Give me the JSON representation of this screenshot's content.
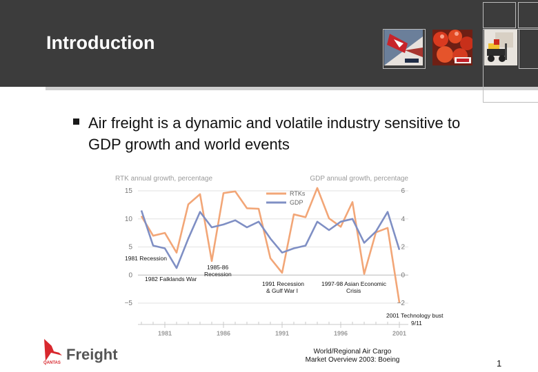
{
  "slide": {
    "title": "Introduction",
    "bullet": "Air freight is a dynamic and volatile industry sensitive to GDP growth and world events",
    "source_line1": "World/Regional Air Cargo",
    "source_line2": "Market Overview 2003: Boeing",
    "page_number": "1",
    "logo_text": "Freight",
    "logo_subtext": "QANTAS"
  },
  "colors": {
    "header_bg": "#3c3c3c",
    "rtk_line": "#f2a677",
    "gdp_line": "#7f8fc4",
    "logo_red": "#d8282e"
  },
  "chart_data": {
    "type": "line",
    "left_axis_title": "RTK annual growth, percentage",
    "right_axis_title": "GDP annual growth, percentage",
    "left_ticks": [
      "15",
      "10",
      "5",
      "0",
      "−5"
    ],
    "right_ticks": [
      "6",
      "4",
      "2",
      "0",
      "−2"
    ],
    "left_ylim": [
      -5,
      15
    ],
    "right_ylim": [
      -2,
      6
    ],
    "x_ticks": [
      "1981",
      "1986",
      "1991",
      "1996",
      "2001"
    ],
    "legend": [
      "RTKs",
      "GDP"
    ],
    "legend_position": "top-right",
    "series": [
      {
        "name": "RTKs",
        "x": [
          1979,
          1980,
          1981,
          1982,
          1983,
          1984,
          1985,
          1986,
          1987,
          1988,
          1989,
          1990,
          1991,
          1992,
          1993,
          1994,
          1995,
          1996,
          1997,
          1998,
          1999,
          2000,
          2001
        ],
        "values": [
          10.5,
          7.0,
          7.5,
          4.0,
          12.6,
          14.4,
          2.5,
          14.6,
          14.9,
          11.9,
          11.8,
          3.0,
          0.4,
          10.8,
          10.3,
          15.5,
          10.1,
          8.6,
          13.0,
          0.2,
          7.6,
          8.4,
          -4.9
        ]
      },
      {
        "name": "GDP",
        "axis": "right",
        "x": [
          1979,
          1980,
          1981,
          1982,
          1983,
          1984,
          1985,
          1986,
          1987,
          1988,
          1989,
          1990,
          1991,
          1992,
          1993,
          1994,
          1995,
          1996,
          1997,
          1998,
          1999,
          2000,
          2001
        ],
        "values": [
          4.6,
          2.1,
          1.9,
          0.5,
          2.6,
          4.5,
          3.4,
          3.6,
          3.9,
          3.4,
          3.8,
          2.6,
          1.6,
          1.9,
          2.1,
          3.8,
          3.2,
          3.8,
          4.0,
          2.3,
          3.1,
          4.5,
          1.8
        ]
      }
    ],
    "annotations": [
      {
        "text": "1981 Recession"
      },
      {
        "text": "1982 Falklands War"
      },
      {
        "text": "1985-86 Recession"
      },
      {
        "text": "1991 Recession & Gulf War I"
      },
      {
        "text": "1997-98 Asian Economic Crisis"
      },
      {
        "text": "2001 Technology bust 9/11"
      }
    ]
  }
}
